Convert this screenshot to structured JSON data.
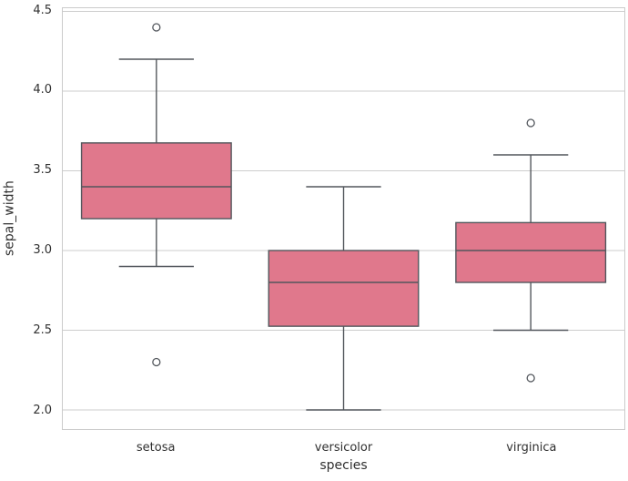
{
  "chart_data": {
    "type": "boxplot",
    "title": "",
    "xlabel": "species",
    "ylabel": "sepal_width",
    "categories": [
      "setosa",
      "versicolor",
      "virginica"
    ],
    "ylim": [
      1.88,
      4.52
    ],
    "yticks": [
      2.0,
      2.5,
      3.0,
      3.5,
      4.0,
      4.5
    ],
    "grid": true,
    "legend": null,
    "box_width_ratio": 0.8,
    "cap_width_ratio": 0.5,
    "colors": {
      "box_fill": "#e0788c",
      "line": "#52565c",
      "grid": "#cdcdcd",
      "spine": "#cbcbcb",
      "background": "#ffffff",
      "text": "#303030"
    },
    "boxes": [
      {
        "category": "setosa",
        "whisker_low": 2.9,
        "q1": 3.2,
        "median": 3.4,
        "q3": 3.675,
        "whisker_high": 4.2,
        "outliers": [
          4.4,
          2.3
        ]
      },
      {
        "category": "versicolor",
        "whisker_low": 2.0,
        "q1": 2.525,
        "median": 2.8,
        "q3": 3.0,
        "whisker_high": 3.4,
        "outliers": []
      },
      {
        "category": "virginica",
        "whisker_low": 2.5,
        "q1": 2.8,
        "median": 3.0,
        "q3": 3.175,
        "whisker_high": 3.6,
        "outliers": [
          3.8,
          2.2
        ]
      }
    ]
  }
}
